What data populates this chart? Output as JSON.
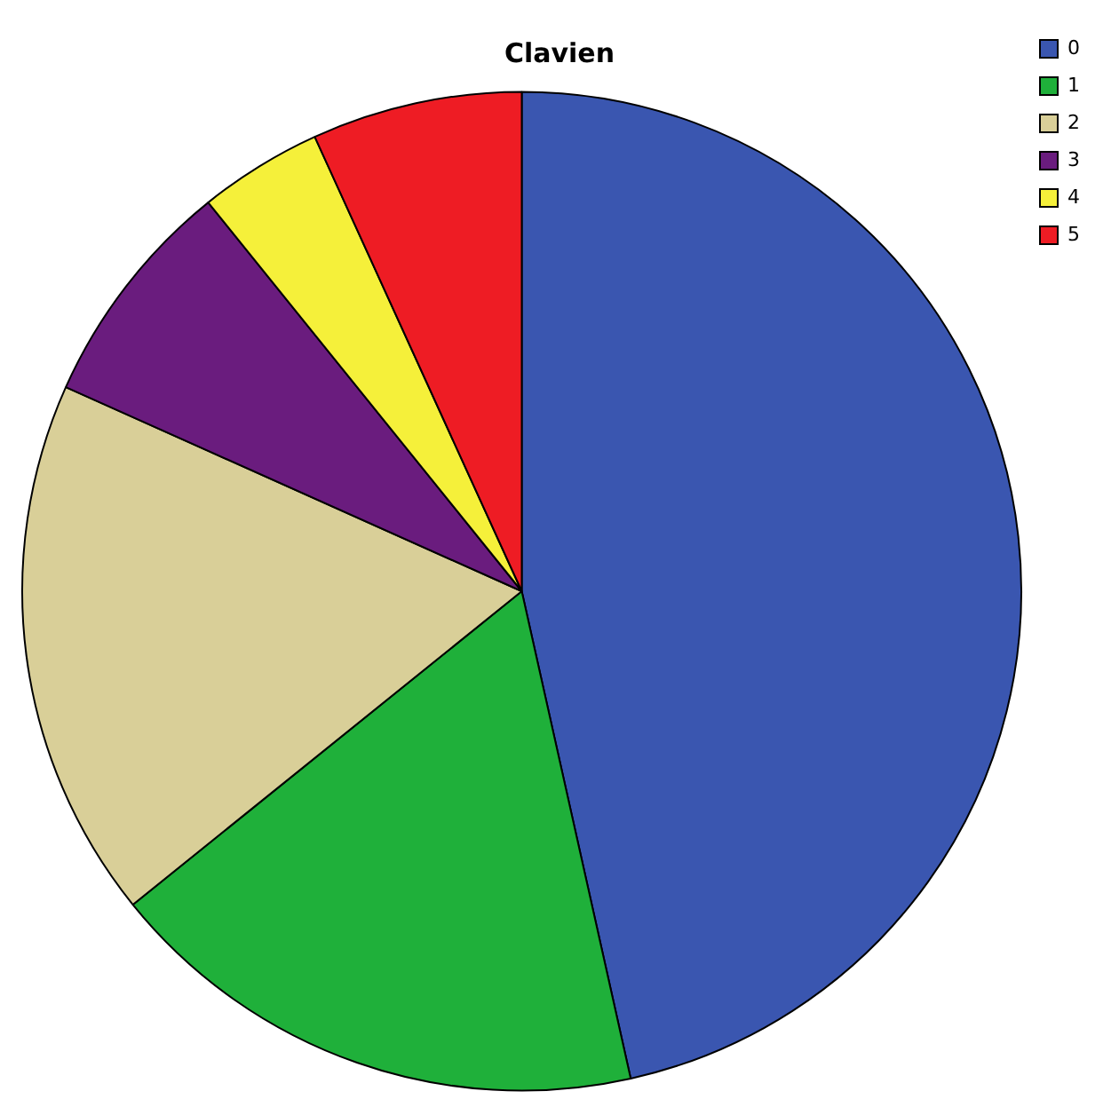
{
  "chart_data": {
    "type": "pie",
    "title": "Clavien",
    "categories": [
      "0",
      "1",
      "2",
      "3",
      "4",
      "5"
    ],
    "values": [
      46.5,
      17.7,
      17.5,
      7.5,
      4,
      6.8
    ],
    "colors": [
      "#3a56b0",
      "#1fb03a",
      "#d9cf98",
      "#6a1c7e",
      "#f5f03a",
      "#ee1c24"
    ],
    "legend": "top right"
  }
}
